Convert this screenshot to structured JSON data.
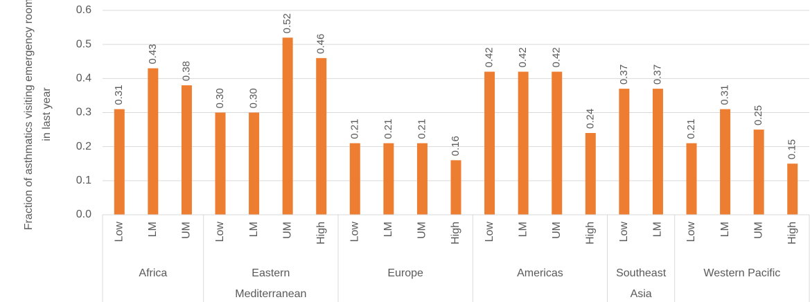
{
  "chart_data": {
    "type": "bar",
    "y_label": "Fraction of asthmatics visiting emergency room in last year",
    "color": "#ed7d31",
    "grid": true,
    "ylim": [
      0,
      0.6
    ],
    "yticks": [
      {
        "value": 0,
        "label": "0.0"
      },
      0.1,
      0.2,
      0.3,
      0.4,
      0.5,
      0.6
    ],
    "groups": [
      {
        "name": "Africa",
        "categories": [
          "Low",
          "LM",
          "UM"
        ],
        "values": [
          0.31,
          0.43,
          0.38
        ],
        "value_labels": [
          "0.31",
          "0.43",
          "0.38"
        ]
      },
      {
        "name": "Eastern Mediterranean",
        "categories": [
          "Low",
          "LM",
          "UM",
          "High"
        ],
        "values": [
          0.3,
          0.3,
          0.52,
          0.46
        ],
        "value_labels": [
          "0.30",
          "0.30",
          "0.52",
          "0.46"
        ]
      },
      {
        "name": "Europe",
        "categories": [
          "Low",
          "LM",
          "UM",
          "High"
        ],
        "values": [
          0.21,
          0.21,
          0.21,
          0.16
        ],
        "value_labels": [
          "0.21",
          "0.21",
          "0.21",
          "0.16"
        ]
      },
      {
        "name": "Americas",
        "categories": [
          "Low",
          "LM",
          "UM",
          "High"
        ],
        "values": [
          0.42,
          0.42,
          0.42,
          0.24
        ],
        "value_labels": [
          "0.42",
          "0.42",
          "0.42",
          "0.24"
        ]
      },
      {
        "name": "Southeast Asia",
        "categories": [
          "Low",
          "LM"
        ],
        "values": [
          0.37,
          0.37
        ],
        "value_labels": [
          "0.37",
          "0.37"
        ]
      },
      {
        "name": "Western Pacific",
        "categories": [
          "Low",
          "LM",
          "UM",
          "High"
        ],
        "values": [
          0.21,
          0.31,
          0.25,
          0.15
        ],
        "value_labels": [
          "0.21",
          "0.31",
          "0.25",
          "0.15"
        ]
      }
    ]
  }
}
